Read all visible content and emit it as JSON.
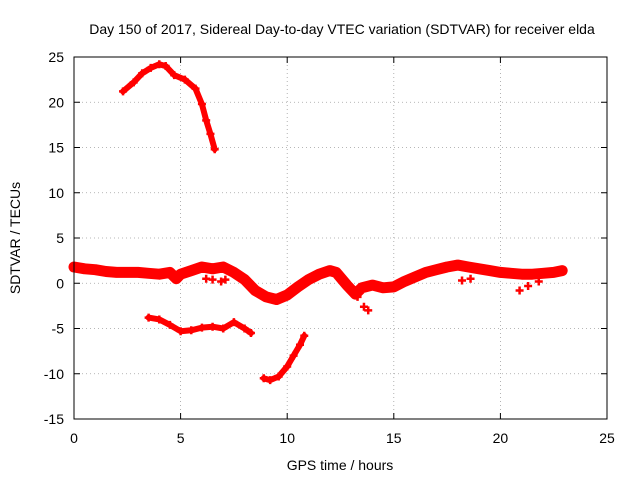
{
  "chart_data": {
    "type": "scatter",
    "title": "Day 150 of 2017, Sidereal Day-to-day VTEC variation (SDTVAR) for receiver elda",
    "xlabel": "GPS time / hours",
    "ylabel": "SDTVAR / TECUs",
    "xlim": [
      0,
      25
    ],
    "ylim": [
      -15,
      25
    ],
    "xticks": [
      0,
      5,
      10,
      15,
      20,
      25
    ],
    "yticks": [
      -15,
      -10,
      -5,
      0,
      5,
      10,
      15,
      20,
      25
    ],
    "grid": true,
    "marker_color": "#ff0000",
    "series": [
      {
        "name": "main band",
        "x": [
          0.0,
          0.5,
          1.0,
          1.5,
          2.0,
          2.5,
          3.0,
          3.5,
          4.0,
          4.5,
          4.8,
          5.0,
          5.5,
          6.0,
          6.5,
          7.0,
          7.5,
          8.0,
          8.5,
          9.0,
          9.5,
          10.0,
          10.5,
          11.0,
          11.5,
          12.0,
          12.3,
          12.8,
          13.2,
          13.5,
          14.0,
          14.5,
          15.0,
          15.5,
          16.0,
          16.5,
          17.0,
          17.5,
          18.0,
          18.5,
          19.0,
          19.5,
          20.0,
          20.5,
          21.0,
          21.5,
          22.0,
          22.5,
          22.9
        ],
        "y": [
          1.8,
          1.6,
          1.5,
          1.3,
          1.2,
          1.2,
          1.2,
          1.1,
          1.0,
          1.2,
          0.5,
          1.0,
          1.4,
          1.8,
          1.6,
          1.8,
          1.2,
          0.4,
          -0.8,
          -1.5,
          -1.8,
          -1.3,
          -0.4,
          0.4,
          1.0,
          1.4,
          1.2,
          -0.2,
          -1.2,
          -0.5,
          -0.2,
          -0.5,
          -0.4,
          0.2,
          0.7,
          1.2,
          1.5,
          1.8,
          2.0,
          1.8,
          1.6,
          1.4,
          1.2,
          1.1,
          1.0,
          1.0,
          1.1,
          1.2,
          1.4
        ]
      },
      {
        "name": "high arc",
        "x": [
          2.3,
          2.8,
          3.2,
          3.6,
          4.0,
          4.3,
          4.7,
          5.2,
          5.7,
          6.0,
          6.2,
          6.4,
          6.6
        ],
        "y": [
          21.2,
          22.2,
          23.2,
          23.8,
          24.2,
          24.0,
          23.0,
          22.5,
          21.5,
          19.8,
          18.0,
          16.5,
          14.8
        ]
      },
      {
        "name": "low arc",
        "x": [
          3.5,
          4.0,
          4.5,
          5.0,
          5.5,
          6.0,
          6.5,
          7.0,
          7.5,
          8.0,
          8.3
        ],
        "y": [
          -3.8,
          -4.0,
          -4.6,
          -5.3,
          -5.2,
          -4.9,
          -4.8,
          -5.0,
          -4.3,
          -5.0,
          -5.5
        ]
      },
      {
        "name": "dip arc",
        "x": [
          8.9,
          9.2,
          9.6,
          10.0,
          10.3,
          10.6,
          10.8
        ],
        "y": [
          -10.5,
          -10.7,
          -10.3,
          -9.2,
          -8.0,
          -6.8,
          -5.8
        ]
      },
      {
        "name": "extra segments",
        "x": [
          6.2,
          6.5,
          6.9,
          7.1,
          13.3,
          13.6,
          13.8,
          18.2,
          18.6,
          20.9,
          21.3,
          21.8
        ],
        "y": [
          0.5,
          0.4,
          0.2,
          0.4,
          -1.5,
          -2.6,
          -3.0,
          0.3,
          0.5,
          -0.8,
          -0.3,
          0.2
        ]
      }
    ]
  }
}
